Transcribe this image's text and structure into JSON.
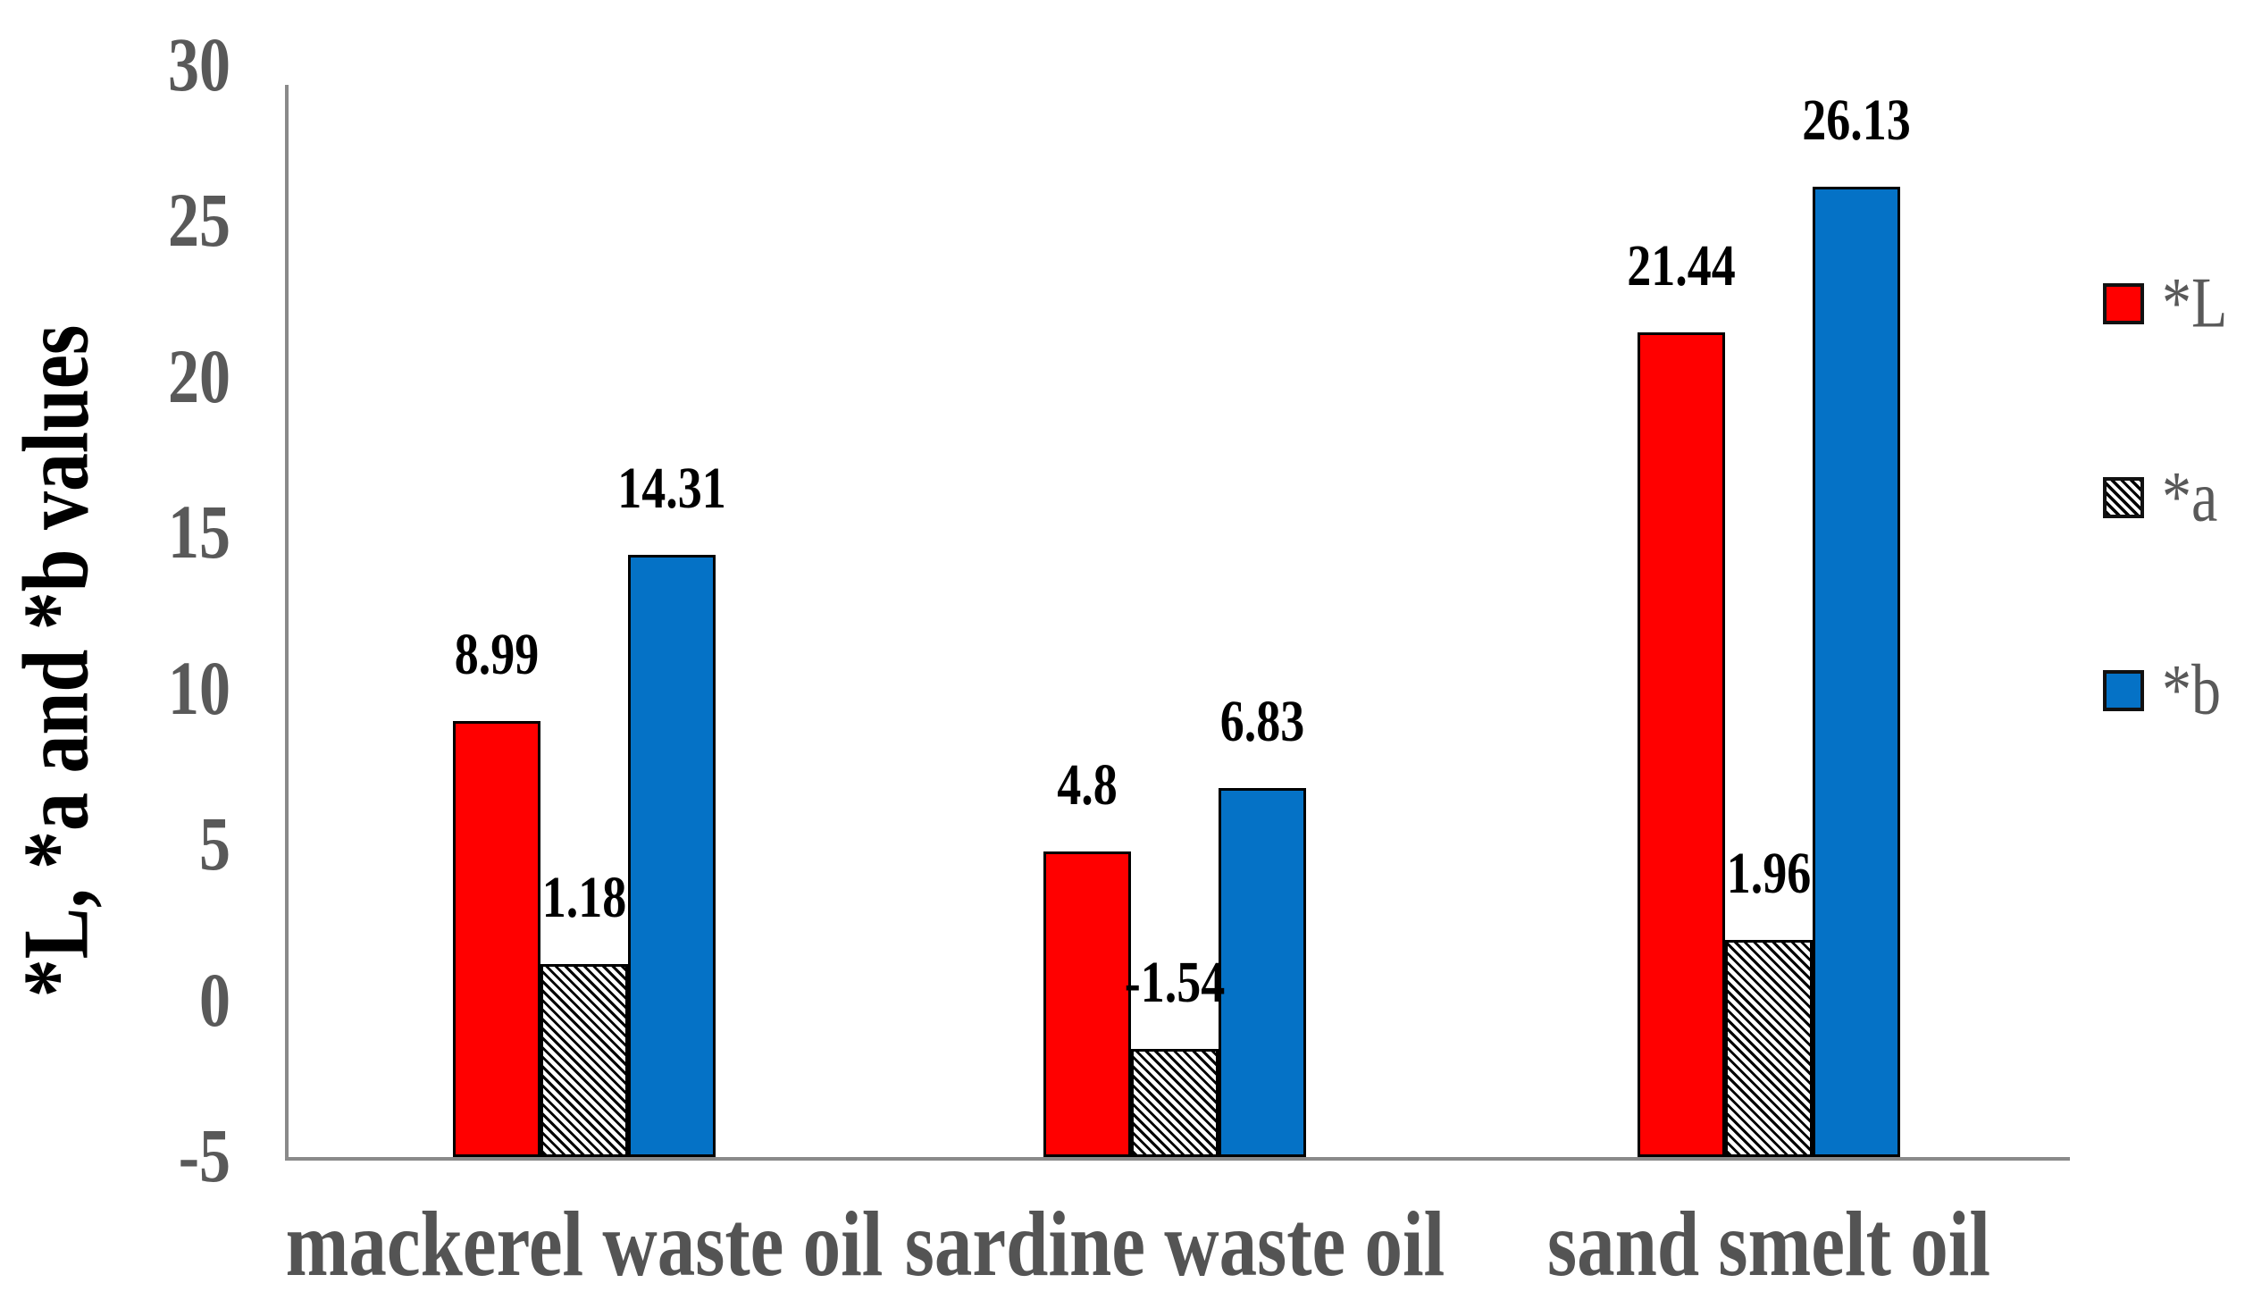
{
  "chart_data": {
    "type": "bar",
    "title": "",
    "ylabel": "*L, *a and *b values",
    "xlabel": "",
    "categories": [
      "mackerel waste oil",
      "sardine waste oil",
      "sand smelt oil"
    ],
    "series": [
      {
        "name": "*L",
        "slug": "l",
        "pattern": "solid",
        "color": "#ff0000",
        "values": [
          8.99,
          4.8,
          21.44
        ],
        "labels": [
          "8.99",
          "4.8",
          "21.44"
        ]
      },
      {
        "name": "*a",
        "slug": "a",
        "pattern": "diagonal-hatch",
        "color": "#000000",
        "values": [
          1.18,
          -1.54,
          1.96
        ],
        "labels": [
          "1.18",
          "-1.54",
          "1.96"
        ]
      },
      {
        "name": "*b",
        "slug": "b",
        "pattern": "solid",
        "color": "#0572c6",
        "values": [
          14.31,
          6.83,
          26.13
        ],
        "labels": [
          "14.31",
          "6.83",
          "26.13"
        ]
      }
    ],
    "ylim": [
      -5,
      30
    ],
    "yticks": [
      "30",
      "25",
      "20",
      "15",
      "10",
      "5",
      "0",
      "-5"
    ],
    "ytick_values": [
      30,
      25,
      20,
      15,
      10,
      5,
      0,
      -5
    ],
    "bars_start_at_axis_min": true,
    "grid": false,
    "legend_position": "right",
    "colors": {
      "background": "#ffffff",
      "axis_line": "#8a8a8a",
      "tick_text": "#595959",
      "category_text": "#545454",
      "data_label_text": "#000000",
      "legend_text": "#595959",
      "bar_border": "#000000"
    }
  }
}
